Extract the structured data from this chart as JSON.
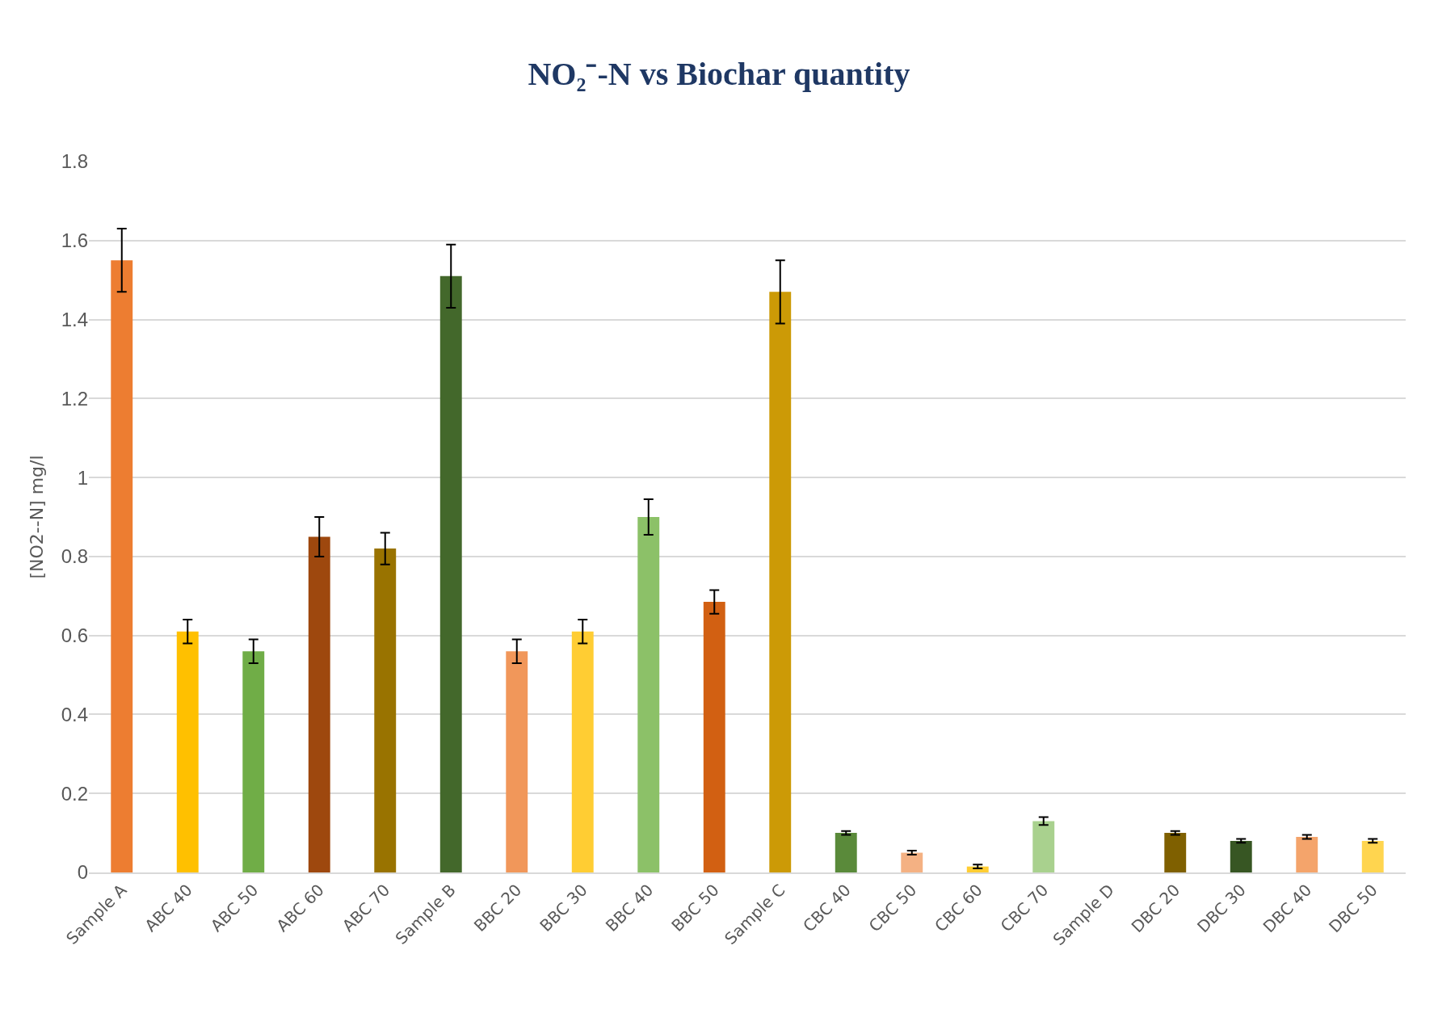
{
  "chart_data": {
    "type": "bar",
    "title": "NO₂⁻-N vs Biochar quantity",
    "ylabel": "[NO2--N] mg/l",
    "categories": [
      "Sample A",
      "ABC 40",
      "ABC 50",
      "ABC 60",
      "ABC 70",
      "Sample B",
      "BBC 20",
      "BBC 30",
      "BBC 40",
      "BBC 50",
      "Sample C",
      "CBC 40",
      "CBC 50",
      "CBC 60",
      "CBC 70",
      "Sample D",
      "DBC 20",
      "DBC 30",
      "DBC 40",
      "DBC 50"
    ],
    "values": [
      1.55,
      0.61,
      0.56,
      0.85,
      0.82,
      1.51,
      0.56,
      0.61,
      0.9,
      0.685,
      1.47,
      0.1,
      0.05,
      0.015,
      0.13,
      null,
      0.1,
      0.08,
      0.09,
      0.08
    ],
    "errors": [
      0.08,
      0.03,
      0.03,
      0.05,
      0.04,
      0.08,
      0.03,
      0.03,
      0.045,
      0.03,
      0.08,
      0.005,
      0.005,
      0.005,
      0.01,
      null,
      0.005,
      0.005,
      0.005,
      0.005
    ],
    "colors": [
      "#ed7d31",
      "#ffc000",
      "#70ad47",
      "#9e480e",
      "#997300",
      "#43682b",
      "#f1975a",
      "#ffcd33",
      "#8cc168",
      "#d26012",
      "#cc9a06",
      "#5a8a3a",
      "#f4b183",
      "#ffcd33",
      "#a9d18e",
      "#808080",
      "#7f6000",
      "#375623",
      "#f4a46b",
      "#ffd54f"
    ],
    "ylim": [
      0,
      1.8
    ],
    "yticks": [
      0,
      0.2,
      0.4,
      0.6,
      0.8,
      1,
      1.2,
      1.4,
      1.6,
      1.8
    ],
    "grid": "y"
  }
}
